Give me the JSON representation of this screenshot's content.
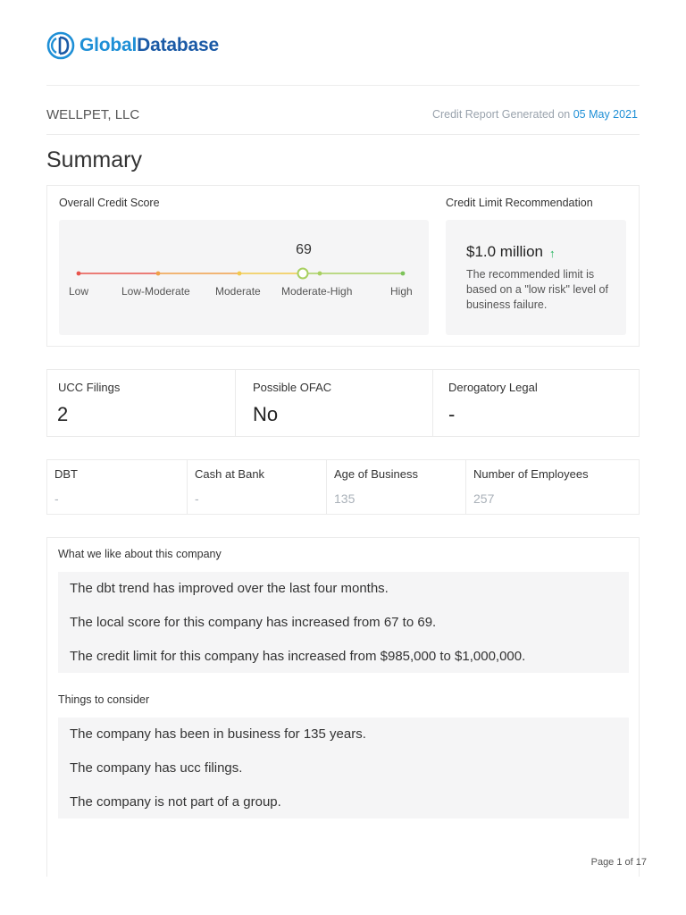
{
  "brand": {
    "name_part1": "Global",
    "name_part2": "Database",
    "logo_colors": [
      "#1e8fd6",
      "#1b5aa6"
    ]
  },
  "header": {
    "company_name": "WELLPET, LLC",
    "generated_label": "Credit Report Generated on",
    "generated_date": "05 May 2021"
  },
  "summary": {
    "title": "Summary",
    "credit_score": {
      "label": "Overall Credit Score",
      "value": "69",
      "band_index": 3,
      "bands": [
        "Low",
        "Low-Moderate",
        "Moderate",
        "Moderate-High",
        "High"
      ],
      "band_colors": [
        "#e8544c",
        "#f0a048",
        "#f2c94c",
        "#a8d060",
        "#7cc35a"
      ]
    },
    "credit_limit": {
      "label": "Credit Limit Recommendation",
      "value": "$1.0 million",
      "trend_icon": "arrow-up-icon",
      "trend_color": "#21b35b",
      "description": "The recommended limit is based on a \"low risk\" level of business failure."
    }
  },
  "stats_row1": [
    {
      "label": "UCC Filings",
      "value": "2"
    },
    {
      "label": "Possible OFAC",
      "value": "No"
    },
    {
      "label": "Derogatory Legal",
      "value": "-"
    }
  ],
  "stats_row2": [
    {
      "label": "DBT",
      "value": "-"
    },
    {
      "label": "Cash at Bank",
      "value": "-"
    },
    {
      "label": "Age of Business",
      "value": "135"
    },
    {
      "label": "Number of Employees",
      "value": "257"
    }
  ],
  "likes": {
    "title": "What we like about this company",
    "items": [
      "The dbt trend has improved over the last four months.",
      "The local score for this company has increased from 67 to 69.",
      "The credit limit for this company has increased from $985,000 to $1,000,000."
    ]
  },
  "considerations": {
    "title": "Things to consider",
    "items": [
      "The company has been in business for 135 years.",
      "The company has ucc filings.",
      "The company is not part of a group."
    ]
  },
  "footer": {
    "page": "Page 1 of 17"
  }
}
